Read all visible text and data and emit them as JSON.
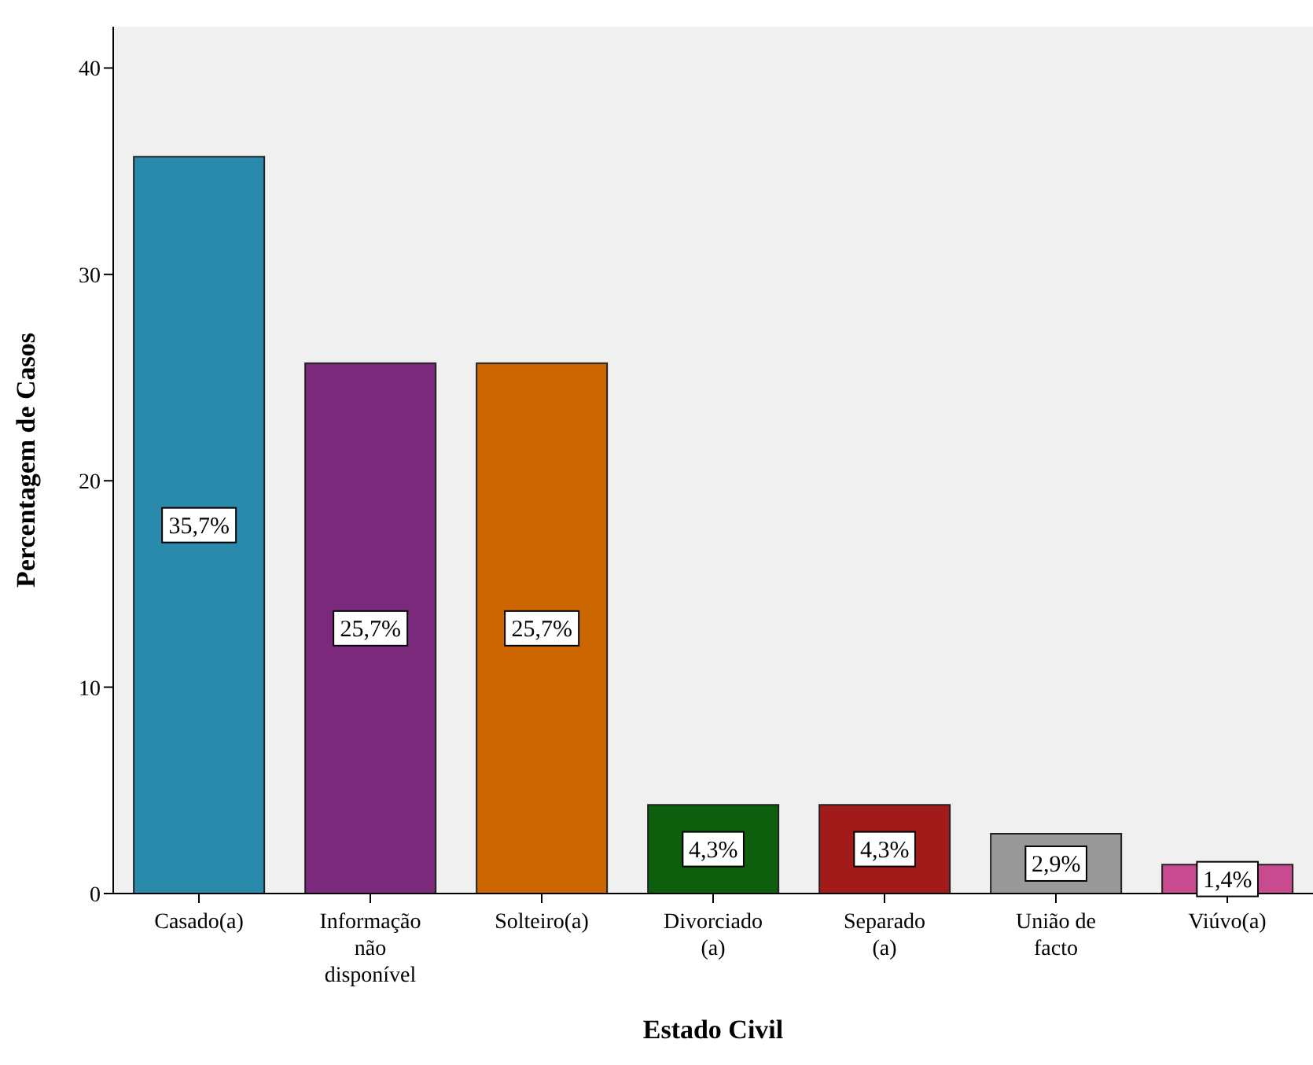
{
  "chart_data": {
    "type": "bar",
    "xlabel": "Estado Civil",
    "ylabel": "Percentagem de Casos",
    "categories": [
      "Casado(a)",
      "Informação não disponível",
      "Solteiro(a)",
      "Divorciado (a)",
      "Separado (a)",
      "União de facto",
      "Viúvo(a)"
    ],
    "values": [
      35.7,
      25.7,
      25.7,
      4.3,
      4.3,
      2.9,
      1.4
    ],
    "colors": [
      "#2a8aac",
      "#7b2a7b",
      "#cc6600",
      "#0d5e0d",
      "#a31a1a",
      "#999999",
      "#c84b8f"
    ],
    "value_labels": [
      "35,7%",
      "25,7%",
      "25,7%",
      "4,3%",
      "4,3%",
      "2,9%",
      "1,4%"
    ],
    "ylim": [
      0,
      42
    ],
    "yticks": [
      0,
      10,
      20,
      30,
      40
    ],
    "grid": false
  }
}
